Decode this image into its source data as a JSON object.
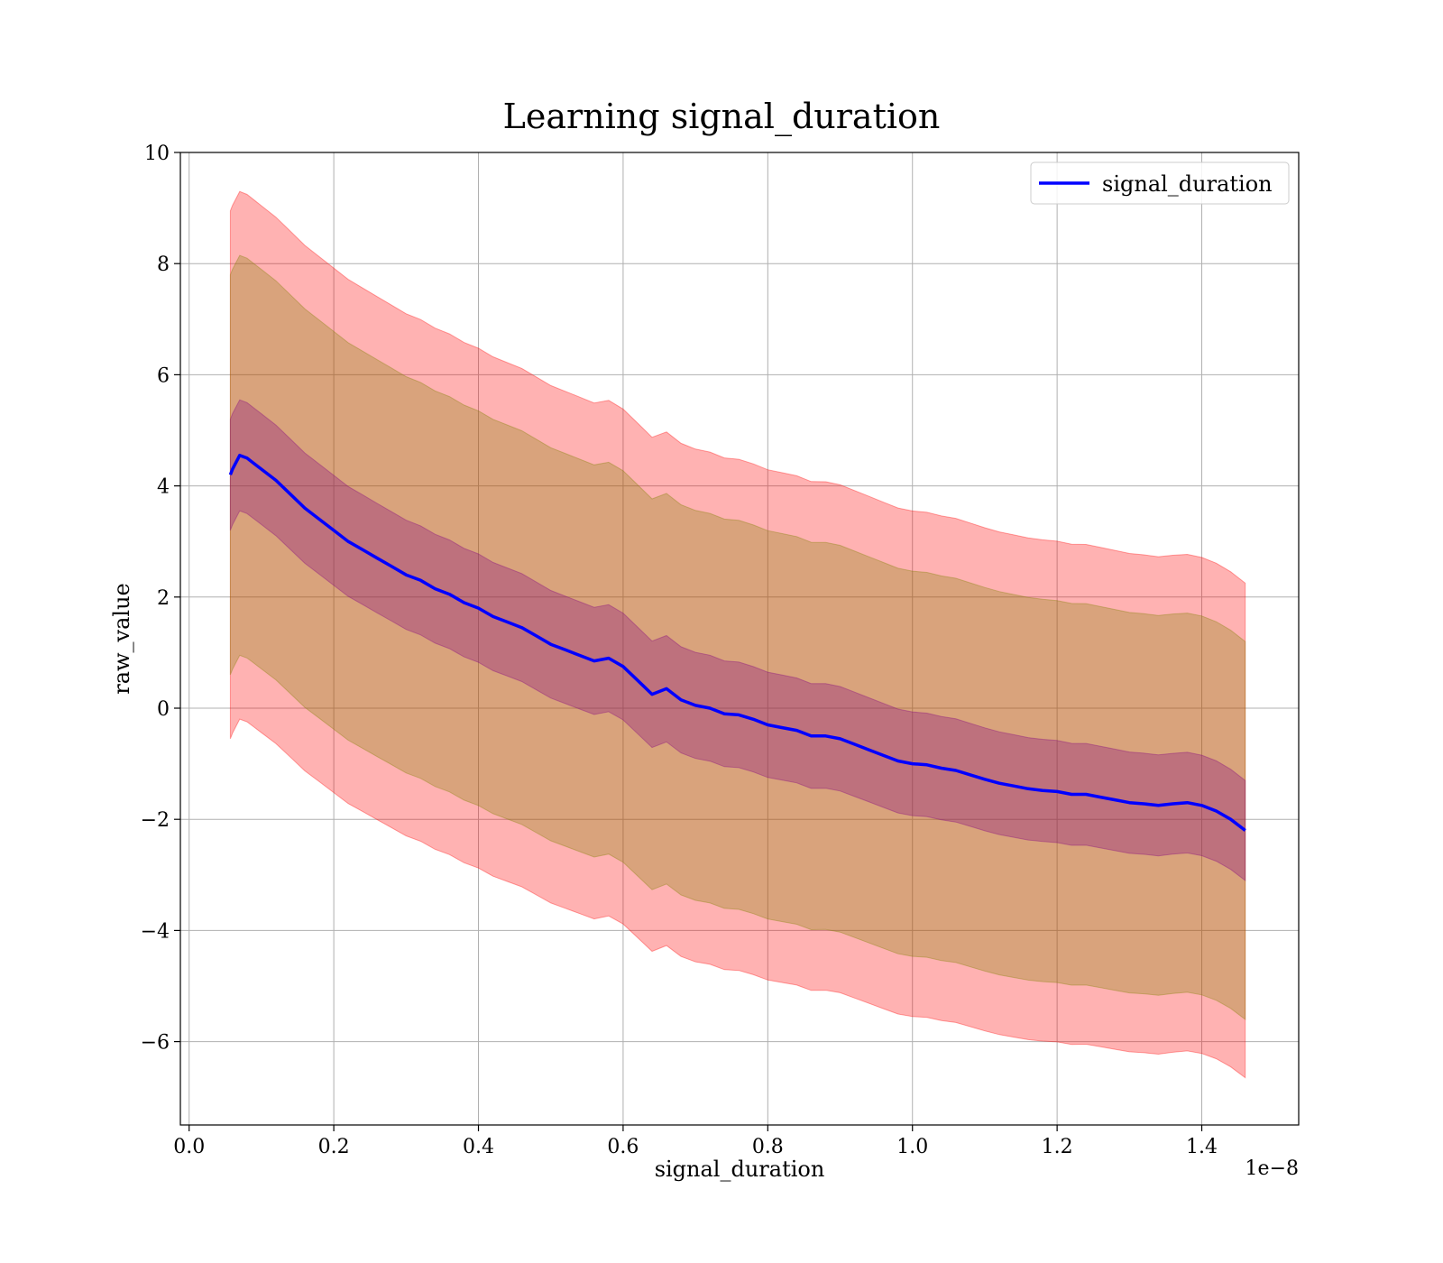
{
  "chart_data": {
    "type": "line",
    "title": "Learning signal_duration",
    "xlabel": "signal_duration",
    "ylabel": "raw_value",
    "x_offset_text": "1e−8",
    "xlim": [
      -0.0121,
      1.534
    ],
    "ylim": [
      -7.5,
      10.0
    ],
    "x_ticks": [
      0.0,
      0.2,
      0.4,
      0.6,
      0.8,
      1.0,
      1.2,
      1.4
    ],
    "x_tick_labels": [
      "0.0",
      "0.2",
      "0.4",
      "0.6",
      "0.8",
      "1.0",
      "1.2",
      "1.4"
    ],
    "y_ticks": [
      -6,
      -4,
      -2,
      0,
      2,
      4,
      6,
      8,
      10
    ],
    "y_tick_labels": [
      "−6",
      "−4",
      "−2",
      "0",
      "2",
      "4",
      "6",
      "8",
      "10"
    ],
    "grid": true,
    "legend": {
      "position": "top-right",
      "entries": [
        "signal_duration"
      ]
    },
    "colors": {
      "line": "#0000ff",
      "band_outer": "#ff0000",
      "band_middle": "#808000",
      "band_inner": "#800080"
    },
    "series": [
      {
        "name": "signal_duration",
        "x": [
          0.057,
          0.06,
          0.07,
          0.08,
          0.09,
          0.1,
          0.12,
          0.14,
          0.16,
          0.18,
          0.2,
          0.22,
          0.24,
          0.26,
          0.28,
          0.3,
          0.32,
          0.34,
          0.36,
          0.38,
          0.4,
          0.42,
          0.44,
          0.46,
          0.48,
          0.5,
          0.52,
          0.54,
          0.56,
          0.58,
          0.6,
          0.62,
          0.64,
          0.66,
          0.68,
          0.7,
          0.72,
          0.74,
          0.76,
          0.78,
          0.8,
          0.82,
          0.84,
          0.86,
          0.88,
          0.9,
          0.92,
          0.94,
          0.96,
          0.98,
          1.0,
          1.02,
          1.04,
          1.06,
          1.08,
          1.1,
          1.12,
          1.14,
          1.16,
          1.18,
          1.2,
          1.22,
          1.24,
          1.26,
          1.28,
          1.3,
          1.32,
          1.34,
          1.36,
          1.38,
          1.4,
          1.42,
          1.44,
          1.46
        ],
        "y": [
          4.2,
          4.3,
          4.55,
          4.5,
          4.4,
          4.3,
          4.1,
          3.85,
          3.6,
          3.4,
          3.2,
          3.0,
          2.85,
          2.7,
          2.55,
          2.4,
          2.3,
          2.15,
          2.05,
          1.9,
          1.8,
          1.65,
          1.55,
          1.45,
          1.3,
          1.15,
          1.05,
          0.95,
          0.85,
          0.9,
          0.75,
          0.5,
          0.25,
          0.35,
          0.15,
          0.05,
          0.0,
          -0.1,
          -0.12,
          -0.2,
          -0.3,
          -0.35,
          -0.4,
          -0.5,
          -0.5,
          -0.55,
          -0.65,
          -0.75,
          -0.85,
          -0.95,
          -1.0,
          -1.02,
          -1.08,
          -1.12,
          -1.2,
          -1.28,
          -1.35,
          -1.4,
          -1.45,
          -1.48,
          -1.5,
          -1.55,
          -1.55,
          -1.6,
          -1.65,
          -1.7,
          -1.72,
          -1.75,
          -1.72,
          -1.7,
          -1.75,
          -1.85,
          -2.0,
          -2.2
        ]
      }
    ],
    "bands": [
      {
        "name": "outer",
        "half_width_start": 4.75,
        "half_width_end": 4.45
      },
      {
        "name": "middle",
        "half_width_start": 3.6,
        "half_width_end": 3.4
      },
      {
        "name": "inner",
        "half_width_start": 1.0,
        "half_width_end": 0.9
      }
    ]
  }
}
